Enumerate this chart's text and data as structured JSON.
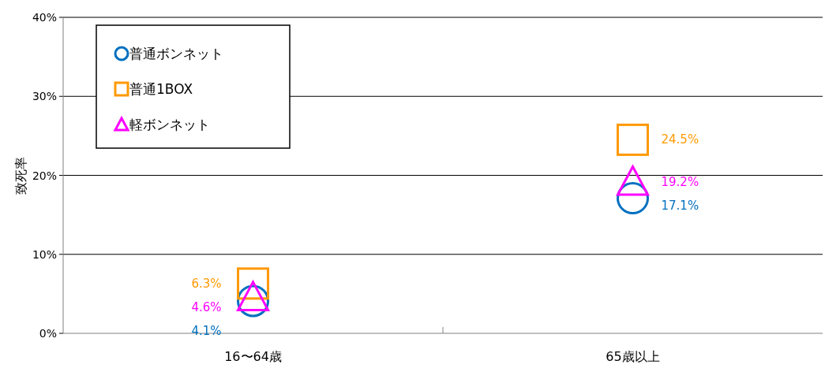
{
  "chart_data": {
    "type": "scatter",
    "ylabel": "致死率",
    "categories": [
      "16〜64歳",
      "65歳以上"
    ],
    "ylim": [
      0,
      40
    ],
    "yticks": [
      {
        "value": 0,
        "label": "0%"
      },
      {
        "value": 10,
        "label": "10%"
      },
      {
        "value": 20,
        "label": "20%"
      },
      {
        "value": 30,
        "label": "30%"
      },
      {
        "value": 40,
        "label": "40%"
      }
    ],
    "grid": "y",
    "legend": "top left",
    "series": [
      {
        "name": "普通ボンネット",
        "color": "#0070c0",
        "marker": "circle",
        "values": [
          4.1,
          17.1
        ],
        "value_labels": [
          "4.1%",
          "17.1%"
        ]
      },
      {
        "name": "普通1BOX",
        "color": "#ff9900",
        "marker": "square",
        "values": [
          6.3,
          24.5
        ],
        "value_labels": [
          "6.3%",
          "24.5%"
        ]
      },
      {
        "name": "軽ボンネット",
        "color": "#ff00ff",
        "marker": "triangle",
        "values": [
          4.6,
          19.2
        ],
        "value_labels": [
          "4.6%",
          "19.2%"
        ]
      }
    ]
  }
}
